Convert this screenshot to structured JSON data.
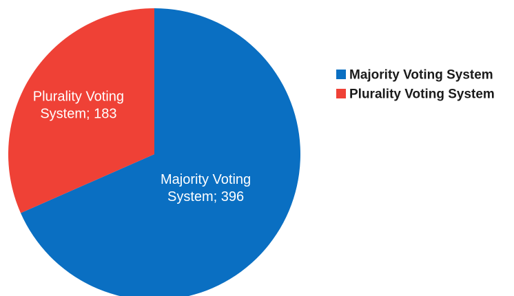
{
  "chart_data": {
    "type": "pie",
    "title": "",
    "categories": [
      "Majority Voting System",
      "Plurality Voting System"
    ],
    "values": [
      396,
      183
    ],
    "colors": [
      "#0A6FC2",
      "#EF4136"
    ],
    "data_labels": [
      [
        "Majority Voting",
        "System; 396"
      ],
      [
        "Plurality Voting",
        "System; 183"
      ]
    ],
    "legend": {
      "position": "right",
      "entries": [
        "Majority Voting System",
        "Plurality Voting System"
      ]
    }
  }
}
